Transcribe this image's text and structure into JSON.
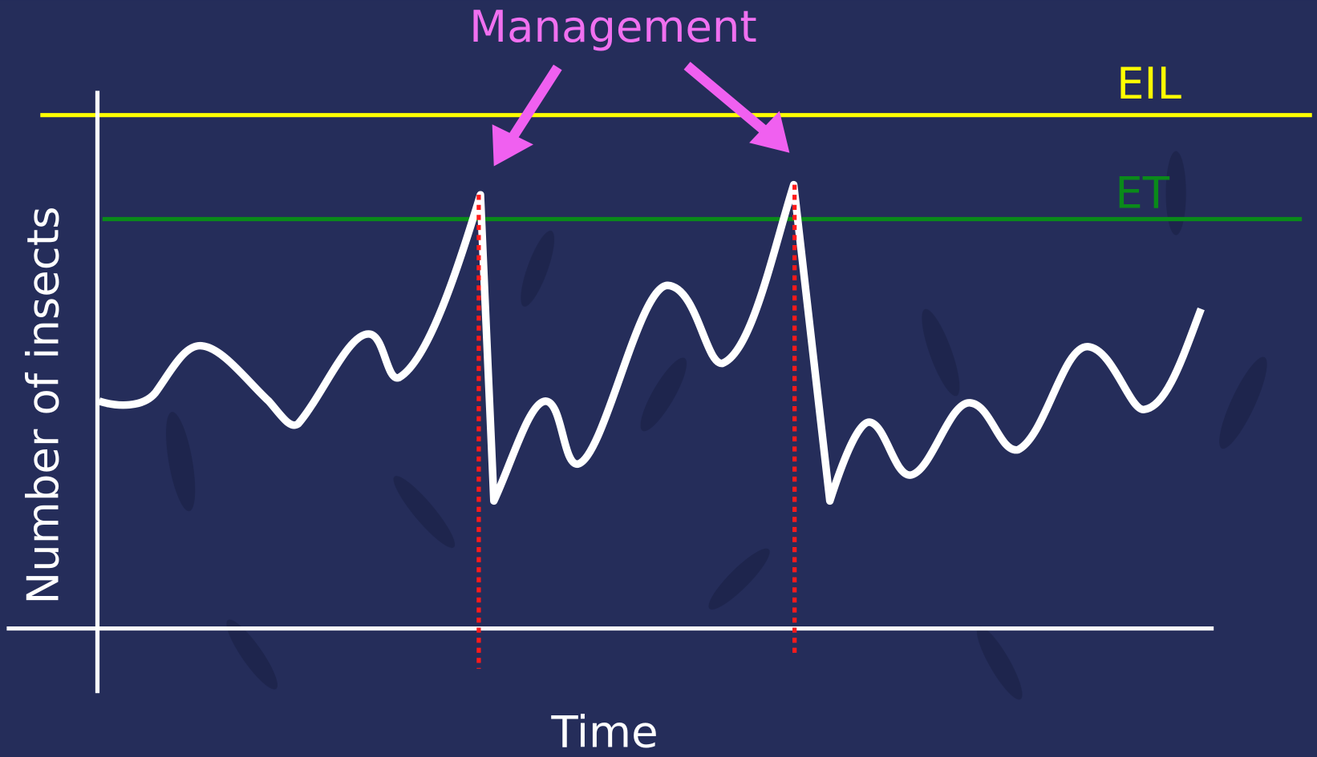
{
  "labels": {
    "management": "Management",
    "eil": "EIL",
    "et": "ET",
    "y_axis": "Number of insects",
    "x_axis": "Time"
  }
}
